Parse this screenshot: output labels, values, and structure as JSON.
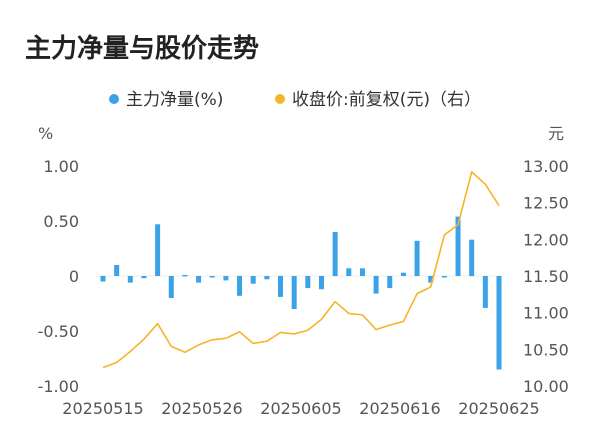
{
  "chart_data": {
    "type": "bar+line",
    "title": "主力净量与股价走势",
    "left_unit": "%",
    "right_unit": "元",
    "legend_position": "top",
    "colors": {
      "bar": "#3ba2e8",
      "line": "#f5b52a"
    },
    "series": [
      {
        "name": "主力净量(%)",
        "type": "bar",
        "axis": "left"
      },
      {
        "name": "收盘价:前复权(元)（右）",
        "type": "line",
        "axis": "right"
      }
    ],
    "left_axis": {
      "ylim": [
        -1.0,
        1.0
      ],
      "ticks": [
        1.0,
        0.5,
        0,
        -0.5,
        -1.0
      ],
      "tick_labels": [
        "1.00",
        "0.50",
        "0",
        "-0.50",
        "-1.00"
      ]
    },
    "right_axis": {
      "ylim": [
        10.0,
        13.0
      ],
      "ticks": [
        13.0,
        12.5,
        12.0,
        11.5,
        11.0,
        10.5,
        10.0
      ],
      "tick_labels": [
        "13.00",
        "12.50",
        "12.00",
        "11.50",
        "11.00",
        "10.50",
        "10.00"
      ]
    },
    "x_tick_labels": [
      {
        "index": 0,
        "label": "20250515"
      },
      {
        "index": 9,
        "label": "20250526"
      },
      {
        "index": 18,
        "label": "20250605"
      },
      {
        "index": 27,
        "label": "20250616"
      },
      {
        "index": 36,
        "label": "20250625"
      }
    ],
    "bar_values": [
      -0.05,
      0.1,
      -0.06,
      -0.02,
      0.47,
      -0.2,
      0.01,
      -0.06,
      -0.01,
      -0.04,
      -0.18,
      -0.07,
      -0.03,
      -0.19,
      -0.3,
      -0.11,
      -0.12,
      0.4,
      0.07,
      0.07,
      -0.16,
      -0.11,
      0.03,
      0.32,
      -0.06,
      -0.01,
      0.54,
      0.33,
      -0.29,
      -0.85
    ],
    "line_values": [
      10.25,
      10.32,
      10.47,
      10.64,
      10.85,
      10.54,
      10.46,
      10.56,
      10.63,
      10.65,
      10.74,
      10.58,
      10.61,
      10.73,
      10.71,
      10.76,
      10.91,
      11.15,
      10.99,
      10.97,
      10.77,
      10.83,
      10.88,
      11.26,
      11.35,
      12.06,
      12.2,
      12.92,
      12.75,
      12.46
    ]
  }
}
